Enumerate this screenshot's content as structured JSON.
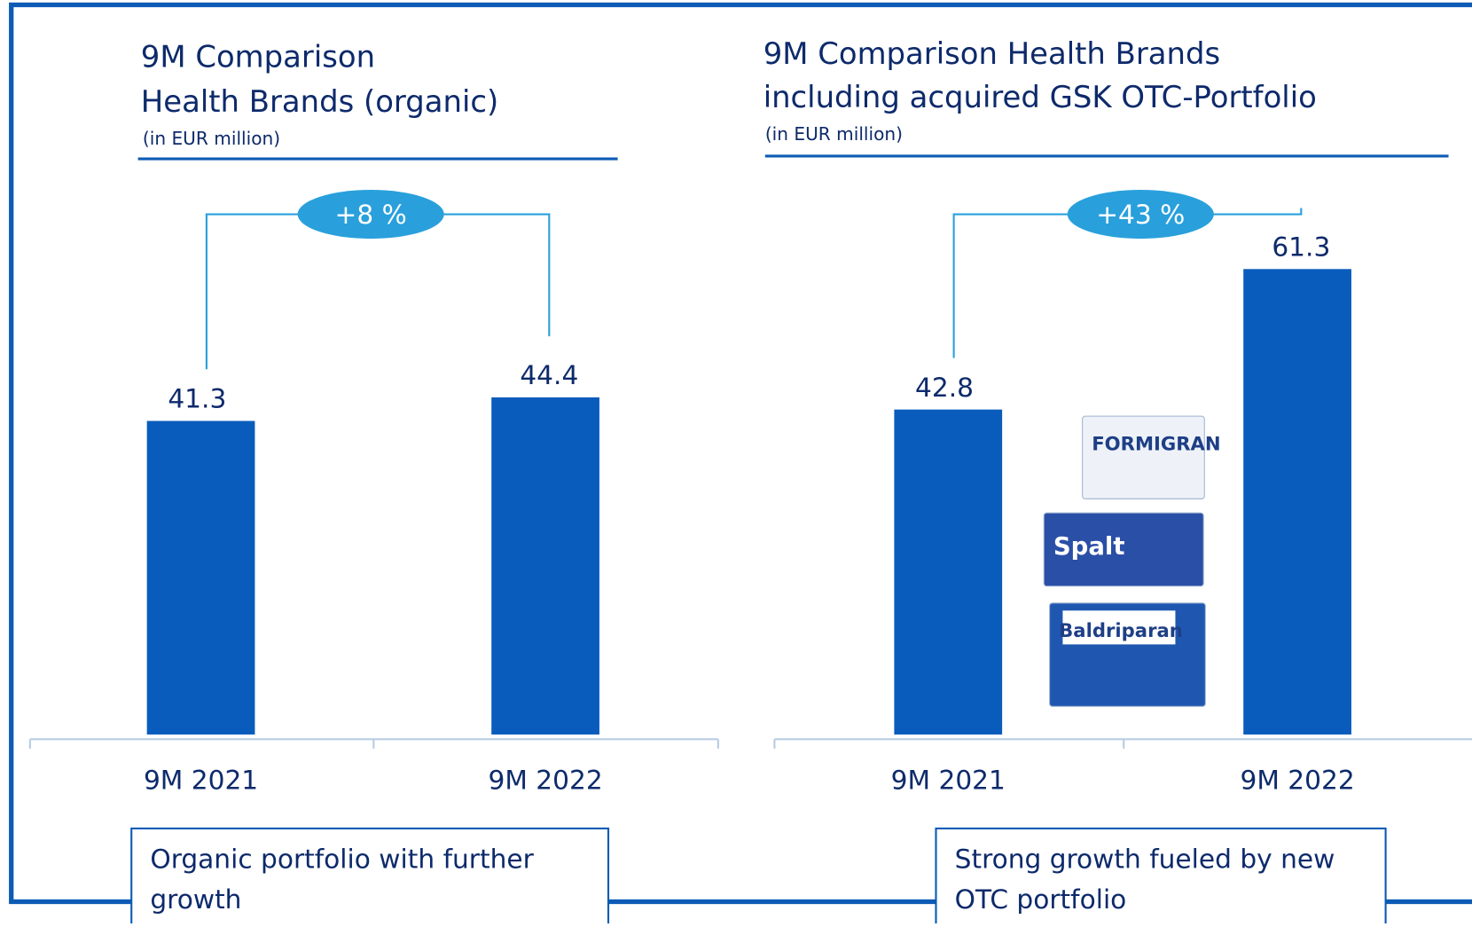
{
  "chart_data": [
    {
      "type": "bar",
      "title_lines": [
        "9M Comparison",
        "Health Brands (organic)"
      ],
      "subtitle": "(in EUR million)",
      "categories": [
        "9M 2021",
        "9M 2022"
      ],
      "values": [
        41.3,
        44.4
      ],
      "color": "#0a5cbc",
      "ylim": [
        0,
        70
      ],
      "growth_label": "+8 %",
      "note": [
        "Organic portfolio with further",
        "growth"
      ]
    },
    {
      "type": "bar",
      "title_lines": [
        "9M Comparison Health Brands",
        "including acquired GSK OTC-Portfolio"
      ],
      "subtitle": "(in EUR million)",
      "categories": [
        "9M 2021",
        "9M 2022"
      ],
      "values": [
        42.8,
        61.3
      ],
      "color": "#0a5cbc",
      "ylim": [
        0,
        70
      ],
      "growth_label": "+43 %",
      "note": [
        "Strong growth fueled by new",
        "OTC portfolio"
      ],
      "products": [
        "FORMIGRAN",
        "Spalt",
        "Baldriparan"
      ]
    }
  ]
}
